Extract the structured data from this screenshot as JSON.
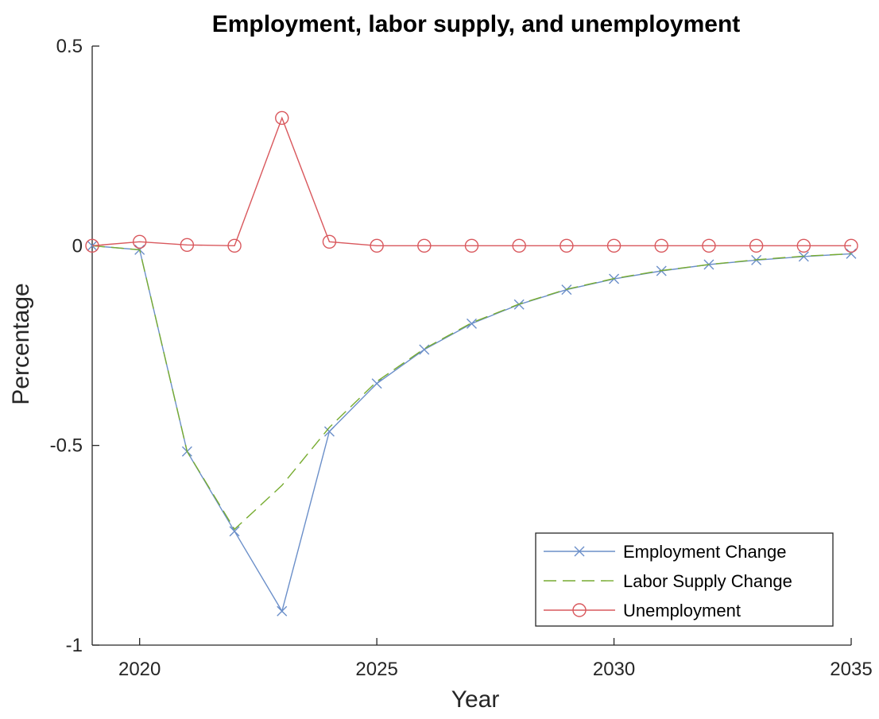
{
  "chart_data": {
    "type": "line",
    "title": "Employment, labor supply, and unemployment",
    "xlabel": "Year",
    "ylabel": "Percentage",
    "xlim": [
      2019,
      2035
    ],
    "ylim": [
      -1,
      0.5
    ],
    "xticks": [
      2020,
      2025,
      2030,
      2035
    ],
    "xtick_labels": [
      "2020",
      "2025",
      "2030",
      "2035"
    ],
    "yticks": [
      0.5,
      0,
      -0.5,
      -1
    ],
    "ytick_labels": [
      "0.5",
      "0",
      "-0.5",
      "-1"
    ],
    "grid": false,
    "legend_position": "bottom-right",
    "x": [
      2019,
      2020,
      2021,
      2022,
      2023,
      2024,
      2025,
      2026,
      2027,
      2028,
      2029,
      2030,
      2031,
      2032,
      2033,
      2034,
      2035
    ],
    "series": [
      {
        "name": "Employment Change",
        "color": "#6b8fc9",
        "marker": "x",
        "dash": "solid",
        "values": [
          0,
          -0.01,
          -0.515,
          -0.715,
          -0.915,
          -0.465,
          -0.345,
          -0.26,
          -0.195,
          -0.147,
          -0.11,
          -0.083,
          -0.063,
          -0.047,
          -0.036,
          -0.027,
          -0.02
        ]
      },
      {
        "name": "Labor Supply Change",
        "color": "#77ac30",
        "marker": "none",
        "dash": "dashed",
        "values": [
          0,
          -0.01,
          -0.515,
          -0.71,
          -0.6,
          -0.455,
          -0.34,
          -0.258,
          -0.193,
          -0.146,
          -0.109,
          -0.082,
          -0.062,
          -0.047,
          -0.035,
          -0.026,
          -0.02
        ]
      },
      {
        "name": "Unemployment",
        "color": "#d9585d",
        "marker": "o",
        "dash": "solid",
        "values": [
          0,
          0.01,
          0.002,
          0.0,
          0.32,
          0.01,
          0.0,
          0.0,
          0.0,
          0.0,
          0.0,
          0.0,
          0.0,
          0.0,
          0.0,
          0.0,
          0.0
        ]
      }
    ]
  }
}
